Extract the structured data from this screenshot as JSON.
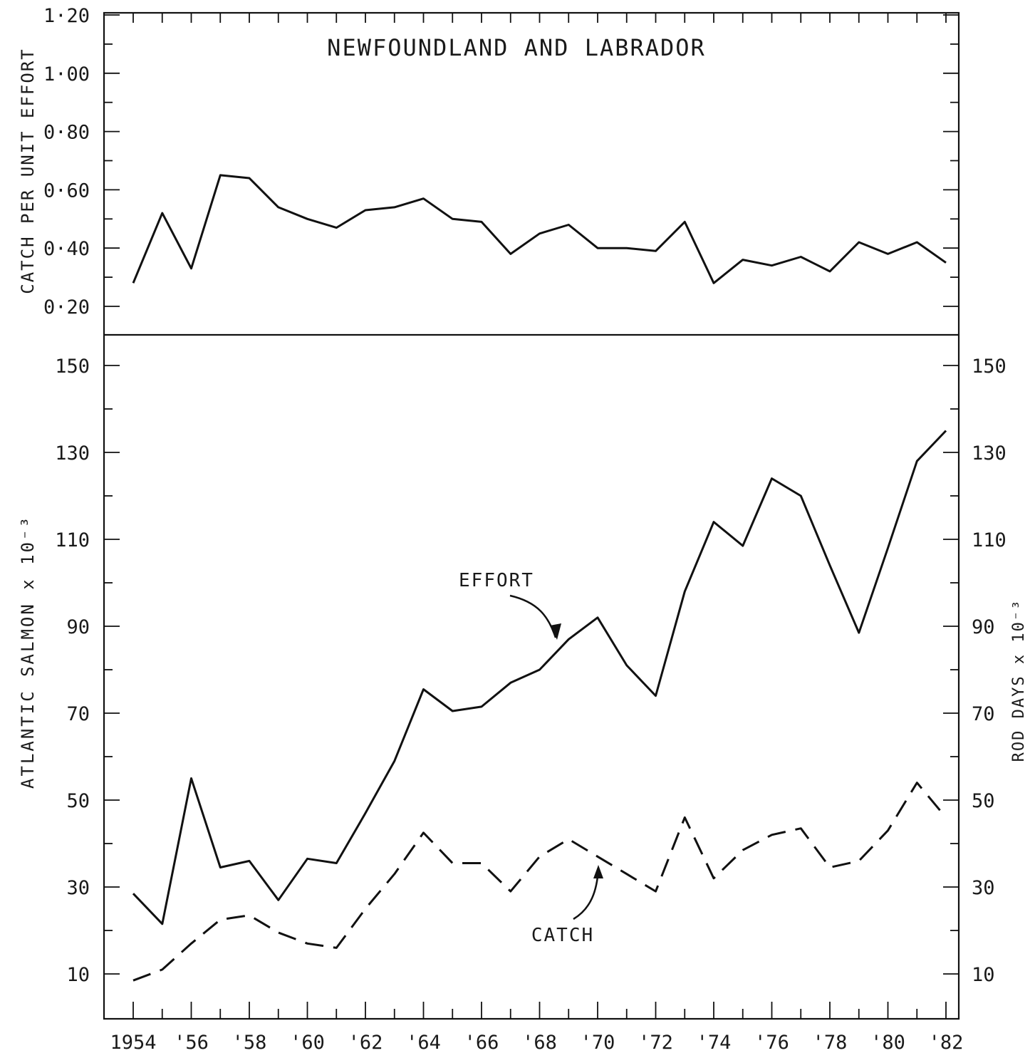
{
  "chart_data": [
    {
      "type": "line",
      "title": "NEWFOUNDLAND AND LABRADOR",
      "ylabel": "CATCH PER UNIT EFFORT",
      "ylim": [
        0.1,
        1.2
      ],
      "y_ticks": [
        "0·20",
        "0·40",
        "0·60",
        "0·80",
        "1·00",
        "1·20"
      ],
      "x": [
        1954,
        1955,
        1956,
        1957,
        1958,
        1959,
        1960,
        1961,
        1962,
        1963,
        1964,
        1965,
        1966,
        1967,
        1968,
        1969,
        1970,
        1971,
        1972,
        1973,
        1974,
        1975,
        1976,
        1977,
        1978,
        1979,
        1980,
        1981,
        1982
      ],
      "series": [
        {
          "values": [
            0.28,
            0.52,
            0.33,
            0.65,
            0.64,
            0.54,
            0.5,
            0.47,
            0.53,
            0.54,
            0.57,
            0.5,
            0.49,
            0.38,
            0.45,
            0.48,
            0.4,
            0.4,
            0.39,
            0.49,
            0.28,
            0.36,
            0.34,
            0.37,
            0.32,
            0.42,
            0.38,
            0.42,
            0.35
          ]
        }
      ]
    },
    {
      "type": "line",
      "ylabel": "ATLANTIC SALMON x 10⁻³",
      "ylabel_right": "ROD DAYS x 10⁻³",
      "ylim": [
        0,
        155
      ],
      "y_ticks_left": [
        "10",
        "30",
        "50",
        "70",
        "90",
        "110",
        "130",
        "150"
      ],
      "y_ticks_right": [
        "10",
        "30",
        "50",
        "70",
        "90",
        "110",
        "130",
        "150"
      ],
      "x_tick_labels": [
        "1954",
        "'56",
        "'58",
        "'60",
        "'62",
        "'64",
        "'66",
        "'68",
        "'70",
        "'72",
        "'74",
        "'76",
        "'78",
        "'80",
        "'82"
      ],
      "x": [
        1954,
        1955,
        1956,
        1957,
        1958,
        1959,
        1960,
        1961,
        1962,
        1963,
        1964,
        1965,
        1966,
        1967,
        1968,
        1969,
        1970,
        1971,
        1972,
        1973,
        1974,
        1975,
        1976,
        1977,
        1978,
        1979,
        1980,
        1981,
        1982
      ],
      "series": [
        {
          "name": "EFFORT",
          "style": "solid",
          "values": [
            28.5,
            21.5,
            55,
            34.5,
            36,
            27,
            36.5,
            35.5,
            47,
            59,
            75.5,
            70.5,
            71.5,
            77,
            80,
            87,
            92,
            81,
            74,
            98,
            114,
            108.5,
            124,
            120,
            104,
            88.5,
            108,
            128,
            135
          ]
        },
        {
          "name": "CATCH",
          "style": "dashed",
          "values": [
            8.5,
            11,
            17,
            22.5,
            23.5,
            19.5,
            17,
            16,
            25,
            33,
            42.5,
            35.5,
            35.5,
            29,
            37,
            41,
            37,
            33,
            29,
            46,
            32,
            38.5,
            42,
            43.5,
            34.5,
            36,
            43,
            54,
            46
          ]
        }
      ]
    }
  ]
}
